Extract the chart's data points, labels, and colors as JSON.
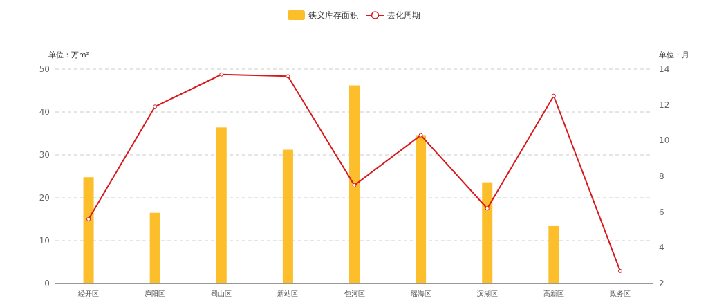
{
  "chart_data": {
    "type": "bar",
    "categories": [
      "经开区",
      "庐阳区",
      "蜀山区",
      "新站区",
      "包河区",
      "瑶海区",
      "滨湖区",
      "高新区",
      "政务区"
    ],
    "series": [
      {
        "name": "狭义库存面积",
        "color": "#fcbf2b",
        "values": [
          24.8,
          16.5,
          36.4,
          31.2,
          46.2,
          34.6,
          23.6,
          13.4,
          0.1
        ]
      },
      {
        "name": "去化周期",
        "type": "line",
        "axis": "y2",
        "color": "#d7191c",
        "marker": "circle",
        "values": [
          5.6,
          11.9,
          13.7,
          13.6,
          7.5,
          10.3,
          6.2,
          12.5,
          2.7
        ]
      }
    ],
    "ylabel": "单位：万m²",
    "y2label": "单位：月",
    "ylim": [
      0,
      50
    ],
    "yticks": [
      0,
      10,
      20,
      30,
      40,
      50
    ],
    "y2lim": [
      2,
      14
    ],
    "y2ticks": [
      2,
      4,
      6,
      8,
      10,
      12,
      14
    ],
    "grid": "y",
    "legend": "top"
  }
}
